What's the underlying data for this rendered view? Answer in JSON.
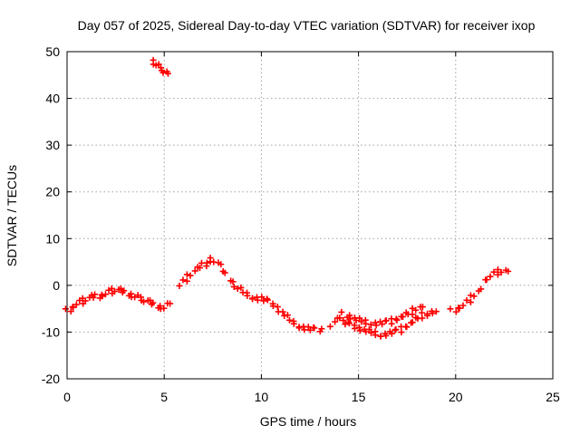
{
  "chart_data": {
    "type": "scatter",
    "title": "Day 057 of 2025, Sidereal Day-to-day VTEC variation (SDTVAR) for receiver ixop",
    "xlabel": "GPS time / hours",
    "ylabel": "SDTVAR / TECUs",
    "xlim": [
      0,
      25
    ],
    "ylim": [
      -20,
      50
    ],
    "xticks": [
      0,
      5,
      10,
      15,
      20,
      25
    ],
    "yticks": [
      -20,
      -10,
      0,
      10,
      20,
      30,
      40,
      50
    ],
    "grid": true,
    "marker": "+",
    "series": [
      {
        "name": "SDTVAR",
        "color": "#ff0000",
        "segments": [
          [
            [
              0.0,
              -5.5
            ],
            [
              0.25,
              -4.8
            ],
            [
              0.5,
              -4.0
            ],
            [
              0.75,
              -3.5
            ],
            [
              1.0,
              -3.0
            ],
            [
              1.25,
              -2.6
            ],
            [
              1.5,
              -2.4
            ],
            [
              1.75,
              -2.2
            ],
            [
              2.0,
              -1.8
            ],
            [
              2.25,
              -1.3
            ],
            [
              2.5,
              -1.0
            ],
            [
              2.75,
              -1.2
            ],
            [
              3.0,
              -1.6
            ],
            [
              3.25,
              -2.0
            ],
            [
              3.5,
              -2.4
            ],
            [
              3.75,
              -2.8
            ],
            [
              4.0,
              -3.2
            ],
            [
              4.25,
              -3.7
            ],
            [
              4.5,
              -4.2
            ],
            [
              4.75,
              -4.6
            ],
            [
              5.0,
              -4.8
            ],
            [
              5.3,
              -3.9
            ]
          ],
          [
            [
              4.4,
              48.0
            ],
            [
              4.6,
              47.2
            ],
            [
              4.8,
              46.4
            ],
            [
              5.0,
              45.8
            ],
            [
              5.2,
              45.3
            ]
          ],
          [
            [
              5.8,
              0.0
            ],
            [
              6.1,
              1.3
            ],
            [
              6.4,
              2.4
            ],
            [
              6.7,
              3.4
            ],
            [
              7.0,
              4.3
            ],
            [
              7.2,
              4.8
            ]
          ],
          [
            [
              7.3,
              5.5
            ],
            [
              7.6,
              5.3
            ],
            [
              7.9,
              4.0
            ],
            [
              8.2,
              2.2
            ],
            [
              8.5,
              0.6
            ],
            [
              8.8,
              -0.6
            ],
            [
              9.2,
              -1.8
            ],
            [
              9.6,
              -2.6
            ],
            [
              10.0,
              -3.0
            ],
            [
              10.4,
              -3.6
            ],
            [
              10.8,
              -4.8
            ],
            [
              11.2,
              -6.4
            ],
            [
              11.6,
              -7.8
            ],
            [
              12.0,
              -8.8
            ],
            [
              12.4,
              -9.4
            ],
            [
              12.8,
              -9.6
            ],
            [
              13.1,
              -9.3
            ]
          ],
          [
            [
              13.6,
              -8.5
            ],
            [
              13.9,
              -7.5
            ],
            [
              14.2,
              -6.2
            ],
            [
              14.5,
              -6.6
            ],
            [
              14.9,
              -7.4
            ],
            [
              15.3,
              -7.8
            ],
            [
              15.7,
              -8.1
            ],
            [
              16.1,
              -8.3
            ],
            [
              16.5,
              -8.0
            ],
            [
              16.9,
              -7.4
            ],
            [
              17.3,
              -6.6
            ],
            [
              17.7,
              -5.8
            ],
            [
              18.0,
              -5.0
            ],
            [
              18.3,
              -4.6
            ]
          ],
          [
            [
              14.2,
              -8.0
            ],
            [
              14.6,
              -8.6
            ],
            [
              15.0,
              -9.2
            ],
            [
              15.4,
              -9.8
            ],
            [
              15.8,
              -10.2
            ],
            [
              16.2,
              -10.6
            ],
            [
              16.6,
              -10.4
            ],
            [
              17.0,
              -9.9
            ],
            [
              17.4,
              -9.0
            ],
            [
              17.8,
              -7.8
            ],
            [
              18.2,
              -6.6
            ],
            [
              18.6,
              -5.8
            ],
            [
              19.0,
              -5.6
            ]
          ],
          [
            [
              19.8,
              -5.5
            ],
            [
              20.1,
              -5.0
            ],
            [
              20.4,
              -4.2
            ],
            [
              20.7,
              -3.2
            ],
            [
              21.0,
              -2.0
            ],
            [
              21.3,
              -0.8
            ]
          ],
          [
            [
              21.5,
              1.0
            ],
            [
              21.8,
              2.0
            ],
            [
              22.1,
              2.7
            ],
            [
              22.4,
              3.1
            ],
            [
              22.7,
              3.0
            ]
          ]
        ]
      }
    ]
  }
}
